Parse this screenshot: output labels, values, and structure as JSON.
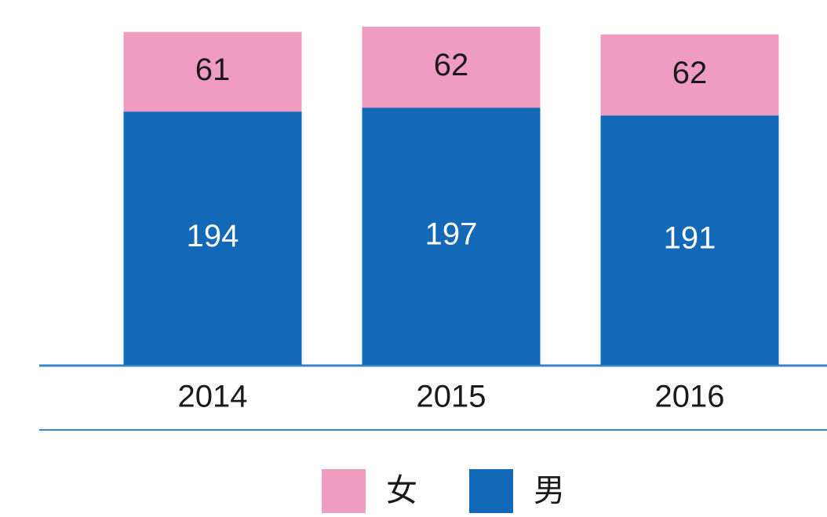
{
  "chart_data": {
    "type": "bar",
    "stacked": true,
    "categories": [
      "2014",
      "2015",
      "2016"
    ],
    "series": [
      {
        "name": "男",
        "color": "#1368b7",
        "values": [
          194,
          197,
          191
        ]
      },
      {
        "name": "女",
        "color": "#f09cc0",
        "values": [
          61,
          62,
          62
        ]
      }
    ]
  }
}
